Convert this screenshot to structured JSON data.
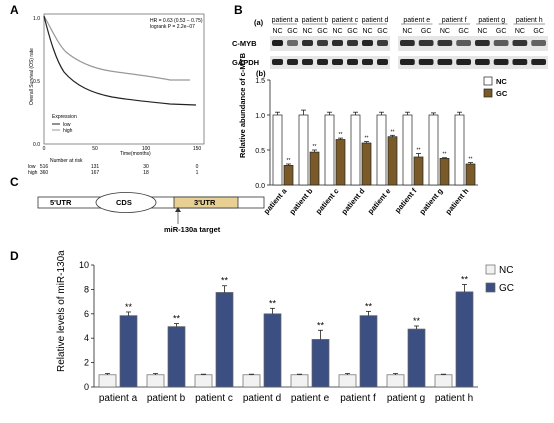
{
  "panels": {
    "a": "A",
    "b": "B",
    "c": "C",
    "d": "D"
  },
  "colors": {
    "nc_fill": "#ffffff",
    "gc_fill_b": "#7b5a2a",
    "gc_fill_d": "#3b4f82",
    "utr3_fill": "#e8cf93"
  },
  "panel_a": {
    "stats_line1": "HR = 0.63 (0.53 − 0.75)",
    "stats_line2": "logrank P = 2.2e−07",
    "ylabel": "Overall Survival (OS) rate",
    "xlabel": "Time(months)",
    "legend_title": "Expression",
    "legend_items": [
      "low",
      "high"
    ],
    "risk_title": "Number at risk",
    "risk_rows": [
      {
        "label": "low",
        "values": [
          "516",
          "131",
          "30",
          "0"
        ]
      },
      {
        "label": "high",
        "values": [
          "360",
          "167",
          "18",
          "1"
        ]
      }
    ]
  },
  "panel_b": {
    "wb_label": "(a)",
    "chart_label": "(b)",
    "patients": [
      "patient a",
      "patient b",
      "patient c",
      "patient d",
      "patient e",
      "patient f",
      "patient g",
      "patient h"
    ],
    "lane_labels": [
      "NC",
      "GC"
    ],
    "blot_rows": [
      "C-MYB",
      "GAPDH"
    ]
  },
  "panel_c": {
    "utr5": "5'UTR",
    "cds": "CDS",
    "utr3": "3'UTR",
    "target": "miR-130a target"
  },
  "sig_mark": "**",
  "chart_data": [
    {
      "type": "bar",
      "panel": "B(b)",
      "categories": [
        "patient a",
        "patient b",
        "patient c",
        "patient d",
        "patient e",
        "patient f",
        "patient g",
        "patient h"
      ],
      "series": [
        {
          "name": "NC",
          "values": [
            1.0,
            1.0,
            1.0,
            1.0,
            1.0,
            1.0,
            1.0,
            1.0
          ],
          "errors": [
            0.04,
            0.07,
            0.04,
            0.04,
            0.04,
            0.04,
            0.03,
            0.04
          ]
        },
        {
          "name": "GC",
          "values": [
            0.28,
            0.47,
            0.65,
            0.6,
            0.69,
            0.4,
            0.38,
            0.3
          ],
          "errors": [
            0.02,
            0.03,
            0.02,
            0.02,
            0.02,
            0.05,
            0.01,
            0.02
          ]
        }
      ],
      "ylabel": "Relative abundance of c-MYB",
      "ylim": [
        0,
        1.5
      ],
      "yticks": [
        "0.0",
        "0.5",
        "1.0",
        "1.5"
      ],
      "legend": "top-right"
    },
    {
      "type": "bar",
      "panel": "D",
      "categories": [
        "patient a",
        "patient b",
        "patient c",
        "patient d",
        "patient e",
        "patient f",
        "patient g",
        "patient h"
      ],
      "series": [
        {
          "name": "NC",
          "values": [
            1.0,
            1.0,
            1.0,
            1.0,
            1.0,
            1.0,
            1.0,
            1.0
          ],
          "errors": [
            0.1,
            0.1,
            0.05,
            0.05,
            0.05,
            0.1,
            0.1,
            0.05
          ]
        },
        {
          "name": "GC",
          "values": [
            5.85,
            4.95,
            7.75,
            6.0,
            3.9,
            5.85,
            4.75,
            7.8
          ],
          "errors": [
            0.3,
            0.25,
            0.55,
            0.45,
            0.75,
            0.35,
            0.25,
            0.6
          ]
        }
      ],
      "ylabel": "Relative levels of miR-130a",
      "ylim": [
        0,
        10
      ],
      "yticks": [
        "0",
        "2",
        "4",
        "6",
        "8",
        "10"
      ],
      "legend": "top-right"
    }
  ]
}
